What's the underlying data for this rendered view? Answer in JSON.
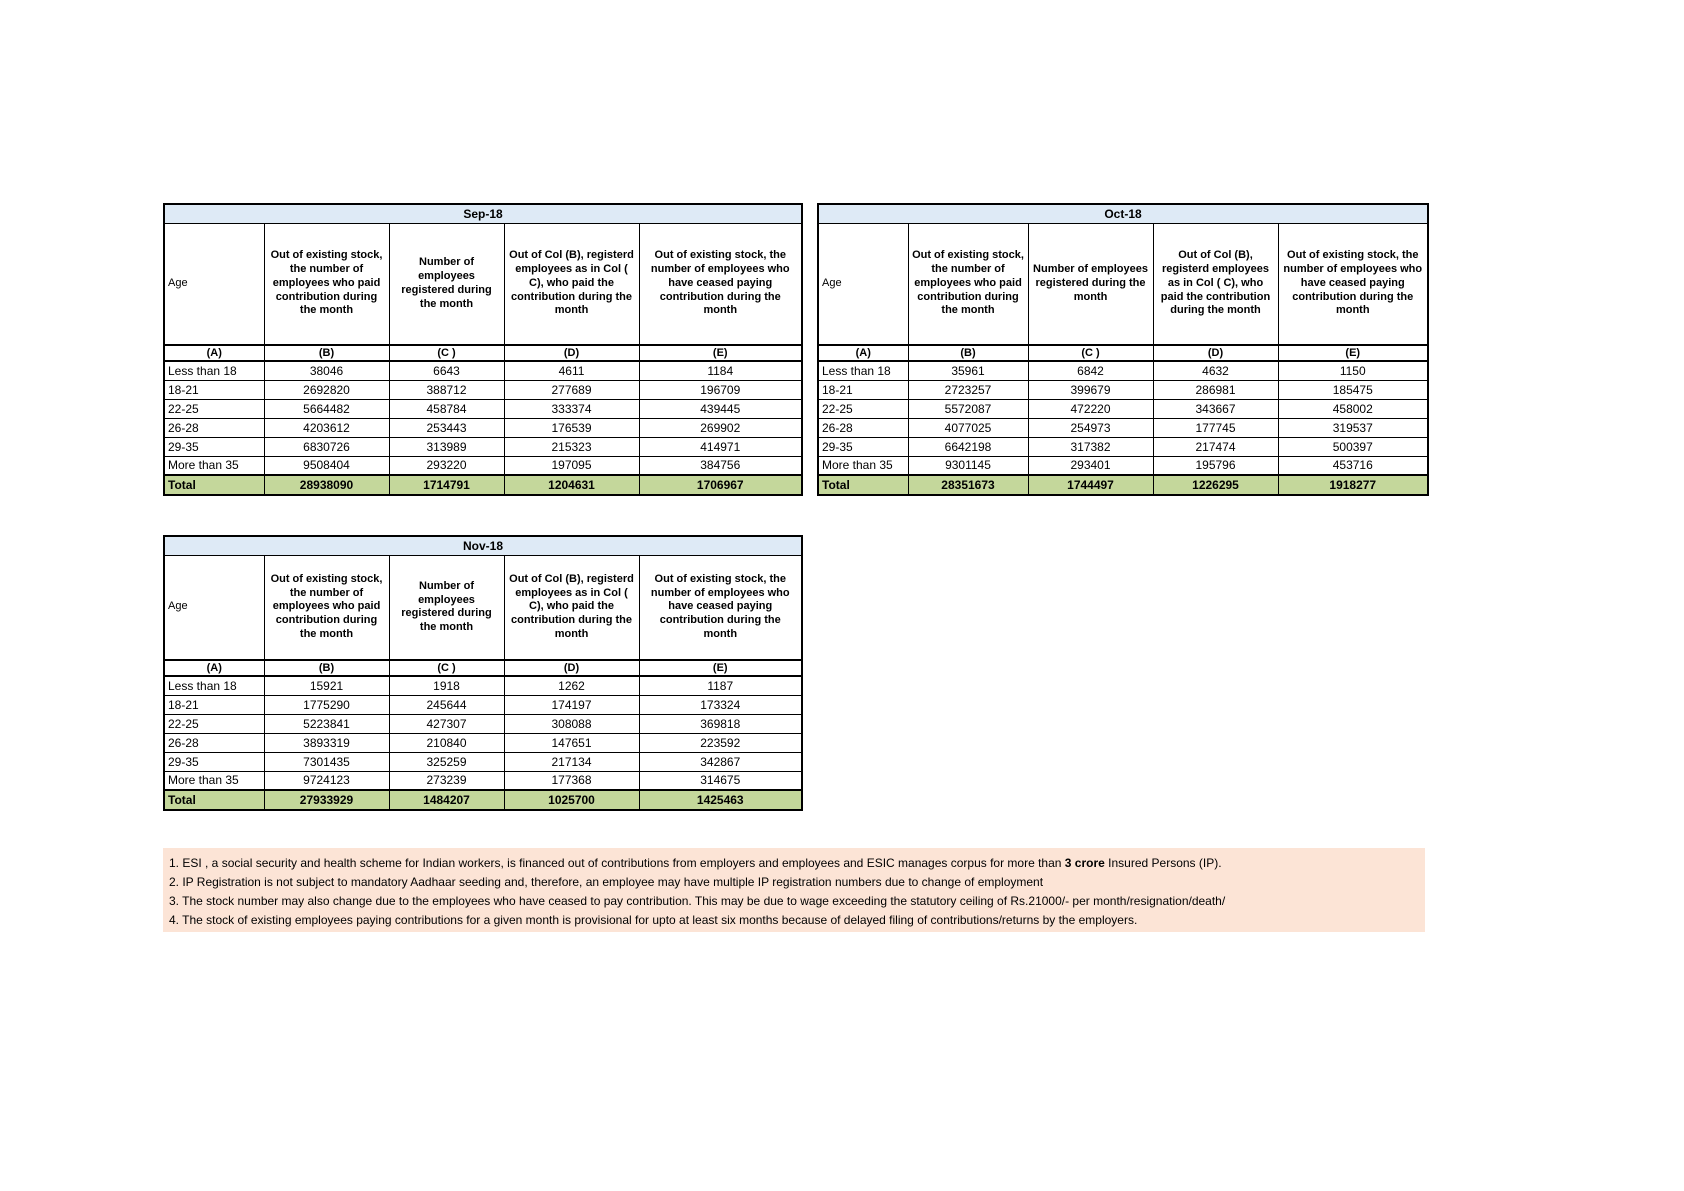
{
  "colors": {
    "month_header_fill": "#DEEAF6",
    "total_fill": "#C4D79B",
    "footnote_fill": "#FCE4D6",
    "border": "#000000",
    "page_background": "#ffffff"
  },
  "table_headers": {
    "age_label": "Age",
    "col_b": "Out of existing stock, the number of employees who paid contribution during the month",
    "col_c": "Number of employees registered during the month",
    "col_d": "Out of Col (B), registerd employees as in Col ( C), who paid the contribution during the month",
    "col_e": "Out of existing stock, the number of employees who have ceased paying contribution during the month",
    "letter_row": [
      "(A)",
      "(B)",
      "(C )",
      "(D)",
      "(E)"
    ]
  },
  "tables": [
    {
      "month": "Sep-18",
      "rows": [
        [
          "Less than 18",
          "38046",
          "6643",
          "4611",
          "1184"
        ],
        [
          "18-21",
          "2692820",
          "388712",
          "277689",
          "196709"
        ],
        [
          "22-25",
          "5664482",
          "458784",
          "333374",
          "439445"
        ],
        [
          "26-28",
          "4203612",
          "253443",
          "176539",
          "269902"
        ],
        [
          "29-35",
          "6830726",
          "313989",
          "215323",
          "414971"
        ],
        [
          "More than 35",
          "9508404",
          "293220",
          "197095",
          "384756"
        ]
      ],
      "total": [
        "Total",
        "28938090",
        "1714791",
        "1204631",
        "1706967"
      ]
    },
    {
      "month": "Oct-18",
      "rows": [
        [
          "Less than 18",
          "35961",
          "6842",
          "4632",
          "1150"
        ],
        [
          "18-21",
          "2723257",
          "399679",
          "286981",
          "185475"
        ],
        [
          "22-25",
          "5572087",
          "472220",
          "343667",
          "458002"
        ],
        [
          "26-28",
          "4077025",
          "254973",
          "177745",
          "319537"
        ],
        [
          "29-35",
          "6642198",
          "317382",
          "217474",
          "500397"
        ],
        [
          "More than 35",
          "9301145",
          "293401",
          "195796",
          "453716"
        ]
      ],
      "total": [
        "Total",
        "28351673",
        "1744497",
        "1226295",
        "1918277"
      ]
    },
    {
      "month": "Nov-18",
      "rows": [
        [
          "Less than 18",
          "15921",
          "1918",
          "1262",
          "1187"
        ],
        [
          "18-21",
          "1775290",
          "245644",
          "174197",
          "173324"
        ],
        [
          "22-25",
          "5223841",
          "427307",
          "308088",
          "369818"
        ],
        [
          "26-28",
          "3893319",
          "210840",
          "147651",
          "223592"
        ],
        [
          "29-35",
          "7301435",
          "325259",
          "217134",
          "342867"
        ],
        [
          "More than 35",
          "9724123",
          "273239",
          "177368",
          "314675"
        ]
      ],
      "total": [
        "Total",
        "27933929",
        "1484207",
        "1025700",
        "1425463"
      ]
    }
  ],
  "footnotes": [
    {
      "segments": [
        {
          "text": "1. ESI , a social security and health scheme for Indian workers, is financed out of contributions from employers and employees and ESIC manages corpus for more than ",
          "bold": false
        },
        {
          "text": "3 crore",
          "bold": true
        },
        {
          "text": " Insured Persons (IP).",
          "bold": false
        }
      ]
    },
    {
      "segments": [
        {
          "text": "2. IP Registration is not subject to mandatory Aadhaar seeding and, therefore, an employee may have multiple IP registration numbers due to change of employment",
          "bold": false
        }
      ]
    },
    {
      "segments": [
        {
          "text": "3. The stock number may also change due to the employees who have ceased to pay contribution. This may  be due to wage exceeding the statutory ceiling of  Rs.21000/- per month/resignation/death/",
          "bold": false
        }
      ]
    },
    {
      "segments": [
        {
          "text": "4. The stock of existing employees paying contributions for a given month is provisional for upto at least six months because of delayed filing of contributions/returns by the employers.",
          "bold": false
        }
      ]
    }
  ]
}
